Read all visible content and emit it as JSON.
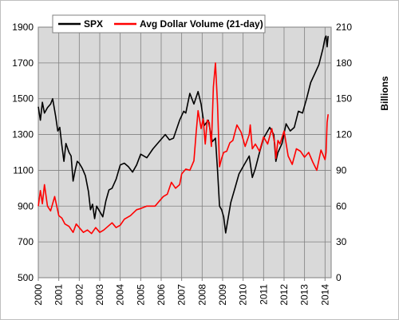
{
  "chart_data": {
    "type": "line",
    "title": "",
    "xlabel": "",
    "ylabel": "",
    "y2label": "Billions",
    "x_ticks": [
      "2000",
      "2001",
      "2002",
      "2003",
      "2004",
      "2005",
      "2006",
      "2007",
      "2008",
      "2009",
      "2010",
      "2011",
      "2012",
      "2013",
      "2014"
    ],
    "x_range": [
      2000.0,
      2014.3
    ],
    "ylim": [
      500,
      1900
    ],
    "y_ticks": [
      "500",
      "700",
      "900",
      "1100",
      "1300",
      "1500",
      "1700",
      "1900"
    ],
    "y2lim": [
      0,
      210
    ],
    "y2_ticks": [
      "0",
      "30",
      "60",
      "90",
      "120",
      "150",
      "180",
      "210"
    ],
    "grid": true,
    "legend_position": "top-left",
    "colors": {
      "spx": "#000000",
      "volume": "#ff0000",
      "plot_bg": "#d9d9d9",
      "grid": "#808080"
    },
    "series": [
      {
        "name": "SPX",
        "axis": "left",
        "x": [
          2000.0,
          2000.1,
          2000.2,
          2000.3,
          2000.45,
          2000.6,
          2000.7,
          2000.85,
          2000.95,
          2001.05,
          2001.15,
          2001.25,
          2001.35,
          2001.5,
          2001.6,
          2001.7,
          2001.8,
          2001.9,
          2002.0,
          2002.15,
          2002.3,
          2002.45,
          2002.55,
          2002.65,
          2002.75,
          2002.85,
          2002.95,
          2003.05,
          2003.15,
          2003.3,
          2003.45,
          2003.6,
          2003.8,
          2004.0,
          2004.2,
          2004.4,
          2004.6,
          2004.8,
          2005.0,
          2005.3,
          2005.6,
          2005.9,
          2006.2,
          2006.4,
          2006.6,
          2006.9,
          2007.1,
          2007.2,
          2007.4,
          2007.6,
          2007.8,
          2007.95,
          2008.1,
          2008.3,
          2008.5,
          2008.65,
          2008.75,
          2008.85,
          2008.95,
          2009.05,
          2009.15,
          2009.25,
          2009.4,
          2009.6,
          2009.8,
          2010.0,
          2010.3,
          2010.45,
          2010.6,
          2010.8,
          2011.0,
          2011.3,
          2011.5,
          2011.6,
          2011.7,
          2011.9,
          2012.1,
          2012.3,
          2012.5,
          2012.7,
          2012.9,
          2013.1,
          2013.3,
          2013.5,
          2013.7,
          2013.9,
          2014.0,
          2014.05,
          2014.1,
          2014.15
        ],
        "y": [
          1455,
          1380,
          1480,
          1420,
          1450,
          1470,
          1500,
          1400,
          1320,
          1340,
          1240,
          1150,
          1250,
          1200,
          1180,
          1040,
          1100,
          1150,
          1140,
          1110,
          1070,
          980,
          880,
          910,
          830,
          900,
          880,
          860,
          840,
          930,
          990,
          1000,
          1050,
          1130,
          1140,
          1120,
          1090,
          1130,
          1190,
          1170,
          1220,
          1260,
          1300,
          1270,
          1280,
          1380,
          1430,
          1420,
          1530,
          1470,
          1540,
          1470,
          1350,
          1380,
          1260,
          1280,
          1100,
          900,
          880,
          840,
          750,
          820,
          920,
          1000,
          1080,
          1120,
          1180,
          1060,
          1110,
          1200,
          1280,
          1340,
          1300,
          1150,
          1200,
          1250,
          1360,
          1320,
          1340,
          1430,
          1420,
          1500,
          1590,
          1640,
          1690,
          1780,
          1840,
          1850,
          1790,
          1850
        ]
      },
      {
        "name": "Avg Dollar Volume (21-day)",
        "axis": "right",
        "x": [
          2000.0,
          2000.1,
          2000.2,
          2000.3,
          2000.45,
          2000.6,
          2000.8,
          2001.0,
          2001.15,
          2001.3,
          2001.5,
          2001.7,
          2001.85,
          2002.0,
          2002.2,
          2002.4,
          2002.6,
          2002.8,
          2003.0,
          2003.2,
          2003.4,
          2003.6,
          2003.8,
          2004.0,
          2004.2,
          2004.5,
          2004.8,
          2005.0,
          2005.3,
          2005.5,
          2005.7,
          2005.9,
          2006.1,
          2006.3,
          2006.5,
          2006.7,
          2006.9,
          2007.0,
          2007.2,
          2007.4,
          2007.6,
          2007.7,
          2007.8,
          2007.95,
          2008.05,
          2008.15,
          2008.25,
          2008.35,
          2008.45,
          2008.55,
          2008.65,
          2008.75,
          2008.85,
          2008.95,
          2009.05,
          2009.2,
          2009.35,
          2009.5,
          2009.7,
          2009.9,
          2010.1,
          2010.3,
          2010.35,
          2010.45,
          2010.6,
          2010.8,
          2011.0,
          2011.2,
          2011.4,
          2011.55,
          2011.6,
          2011.7,
          2011.8,
          2012.0,
          2012.2,
          2012.4,
          2012.6,
          2012.8,
          2013.0,
          2013.2,
          2013.4,
          2013.6,
          2013.8,
          2014.0,
          2014.05,
          2014.1,
          2014.15
        ],
        "y": [
          60,
          73,
          62,
          78,
          60,
          56,
          68,
          52,
          50,
          45,
          43,
          38,
          45,
          42,
          38,
          40,
          37,
          42,
          38,
          40,
          43,
          46,
          42,
          44,
          49,
          52,
          57,
          58,
          60,
          60,
          60,
          64,
          68,
          70,
          80,
          75,
          78,
          87,
          91,
          90,
          98,
          120,
          140,
          125,
          133,
          112,
          132,
          130,
          110,
          160,
          180,
          145,
          93,
          100,
          105,
          106,
          113,
          115,
          128,
          122,
          110,
          120,
          128,
          108,
          112,
          106,
          118,
          112,
          125,
          112,
          100,
          115,
          112,
          123,
          102,
          95,
          108,
          106,
          101,
          105,
          97,
          90,
          107,
          99,
          105,
          130,
          137
        ]
      }
    ]
  }
}
